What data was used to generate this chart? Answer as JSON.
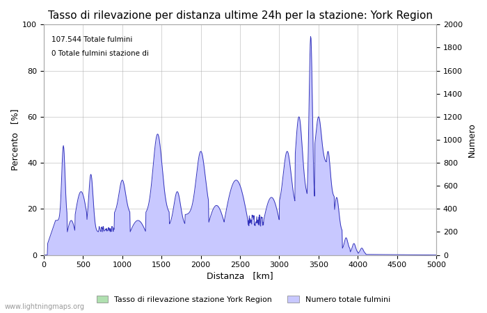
{
  "title": "Tasso di rilevazione per distanza ultime 24h per la stazione: York Region",
  "xlabel": "Distanza   [km]",
  "ylabel_left": "Percento   [%]",
  "ylabel_right": "Numero",
  "annotation_line1": "107.544 Totale fulmini",
  "annotation_line2": "0 Totale fulmini stazione di",
  "legend_label1": "Tasso di rilevazione stazione York Region",
  "legend_label2": "Numero totale fulmini",
  "watermark": "www.lightningmaps.org",
  "xlim": [
    0,
    5000
  ],
  "ylim_left": [
    0,
    100
  ],
  "ylim_right": [
    0,
    2000
  ],
  "fill_color_blue": "#c8c8ff",
  "fill_color_green": "#b0e0b0",
  "line_color": "#3333bb",
  "background_color": "#ffffff",
  "grid_color": "#aaaaaa",
  "title_fontsize": 11,
  "axis_fontsize": 9,
  "tick_fontsize": 8,
  "x_ticks": [
    0,
    500,
    1000,
    1500,
    2000,
    2500,
    3000,
    3500,
    4000,
    4500,
    5000
  ],
  "y_ticks_left": [
    0,
    20,
    40,
    60,
    80,
    100
  ],
  "y_ticks_right": [
    0,
    200,
    400,
    600,
    800,
    1000,
    1200,
    1400,
    1600,
    1800,
    2000
  ]
}
